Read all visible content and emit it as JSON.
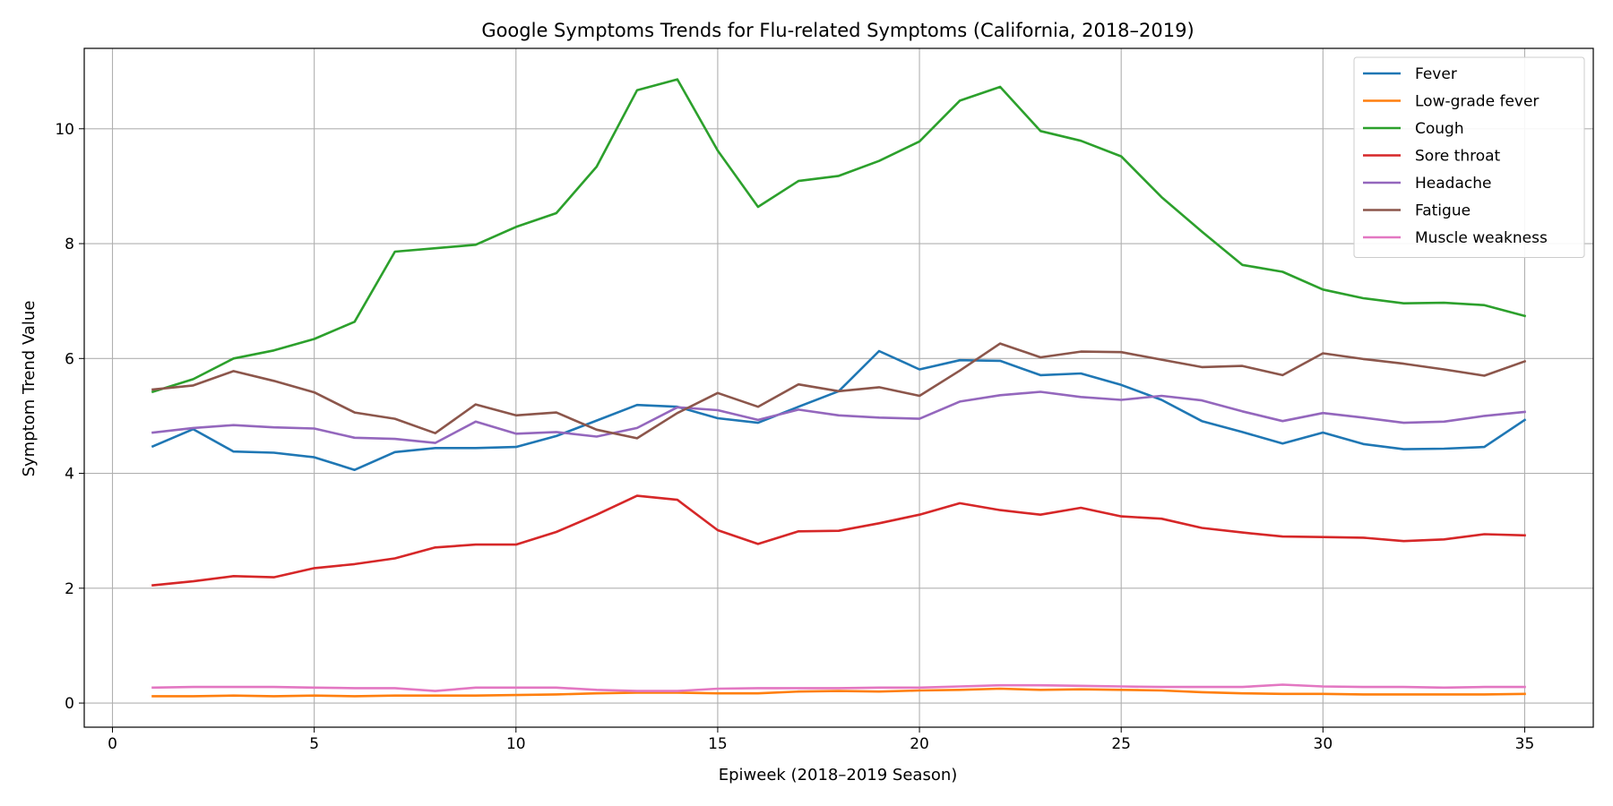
{
  "chart_data": {
    "type": "line",
    "title": "Google Symptoms Trends for Flu-related Symptoms (California, 2018–2019)",
    "xlabel": "Epiweek (2018–2019 Season)",
    "ylabel": "Symptom Trend Value",
    "xlim": [
      -0.7,
      36.7
    ],
    "ylim": [
      -0.42,
      11.4
    ],
    "xticks": [
      0,
      5,
      10,
      15,
      20,
      25,
      30,
      35
    ],
    "yticks": [
      0,
      2,
      4,
      6,
      8,
      10
    ],
    "grid": true,
    "legend_position": "top-right",
    "x": [
      1,
      2,
      3,
      4,
      5,
      6,
      7,
      8,
      9,
      10,
      11,
      12,
      13,
      14,
      15,
      16,
      17,
      18,
      19,
      20,
      21,
      22,
      23,
      24,
      25,
      26,
      27,
      28,
      29,
      30,
      31,
      32,
      33,
      34,
      35
    ],
    "series": [
      {
        "name": "Fever",
        "color": "#1f77b4",
        "values": [
          4.47,
          4.77,
          4.38,
          4.36,
          4.28,
          4.06,
          4.37,
          4.44,
          4.44,
          4.46,
          4.65,
          4.92,
          5.19,
          5.16,
          4.96,
          4.88,
          5.16,
          5.43,
          6.13,
          5.81,
          5.97,
          5.96,
          5.71,
          5.74,
          5.54,
          5.28,
          4.91,
          4.72,
          4.52,
          4.71,
          4.51,
          4.42,
          4.43,
          4.46,
          4.93
        ]
      },
      {
        "name": "Low-grade fever",
        "color": "#ff7f0e",
        "values": [
          0.12,
          0.12,
          0.13,
          0.12,
          0.13,
          0.12,
          0.13,
          0.13,
          0.13,
          0.14,
          0.15,
          0.17,
          0.18,
          0.18,
          0.17,
          0.17,
          0.2,
          0.21,
          0.2,
          0.22,
          0.23,
          0.25,
          0.23,
          0.24,
          0.23,
          0.22,
          0.19,
          0.17,
          0.16,
          0.16,
          0.15,
          0.15,
          0.15,
          0.15,
          0.16
        ]
      },
      {
        "name": "Cough",
        "color": "#2ca02c",
        "values": [
          5.42,
          5.64,
          6.0,
          6.14,
          6.34,
          6.64,
          7.86,
          7.92,
          7.98,
          8.29,
          8.53,
          9.34,
          10.67,
          10.86,
          9.62,
          8.64,
          9.09,
          9.18,
          9.44,
          9.78,
          10.49,
          10.73,
          9.96,
          9.79,
          9.52,
          8.81,
          8.21,
          7.63,
          7.51,
          7.2,
          7.05,
          6.96,
          6.97,
          6.93,
          6.74
        ]
      },
      {
        "name": "Sore throat",
        "color": "#d62728",
        "values": [
          2.05,
          2.12,
          2.21,
          2.19,
          2.35,
          2.42,
          2.52,
          2.71,
          2.76,
          2.76,
          2.98,
          3.28,
          3.61,
          3.54,
          3.01,
          2.77,
          2.99,
          3.0,
          3.13,
          3.28,
          3.48,
          3.36,
          3.28,
          3.4,
          3.25,
          3.21,
          3.05,
          2.97,
          2.9,
          2.89,
          2.88,
          2.82,
          2.85,
          2.94,
          2.92
        ]
      },
      {
        "name": "Headache",
        "color": "#9467bd",
        "values": [
          4.71,
          4.79,
          4.84,
          4.8,
          4.78,
          4.62,
          4.6,
          4.53,
          4.9,
          4.69,
          4.72,
          4.64,
          4.79,
          5.15,
          5.1,
          4.93,
          5.11,
          5.01,
          4.97,
          4.95,
          5.25,
          5.36,
          5.42,
          5.33,
          5.28,
          5.35,
          5.27,
          5.08,
          4.91,
          5.05,
          4.97,
          4.88,
          4.9,
          5.0,
          5.07
        ]
      },
      {
        "name": "Fatigue",
        "color": "#8c564b",
        "values": [
          5.46,
          5.53,
          5.78,
          5.61,
          5.41,
          5.06,
          4.95,
          4.7,
          5.2,
          5.01,
          5.06,
          4.76,
          4.61,
          5.05,
          5.4,
          5.16,
          5.55,
          5.43,
          5.5,
          5.35,
          5.79,
          6.26,
          6.02,
          6.12,
          6.11,
          5.98,
          5.85,
          5.87,
          5.71,
          6.09,
          5.99,
          5.91,
          5.81,
          5.7,
          5.95
        ]
      },
      {
        "name": "Muscle weakness",
        "color": "#e377c2",
        "values": [
          0.27,
          0.28,
          0.28,
          0.28,
          0.27,
          0.26,
          0.26,
          0.21,
          0.27,
          0.27,
          0.27,
          0.23,
          0.21,
          0.21,
          0.25,
          0.26,
          0.26,
          0.26,
          0.27,
          0.27,
          0.29,
          0.31,
          0.31,
          0.3,
          0.29,
          0.28,
          0.28,
          0.28,
          0.32,
          0.29,
          0.28,
          0.28,
          0.27,
          0.28,
          0.28
        ]
      }
    ]
  }
}
